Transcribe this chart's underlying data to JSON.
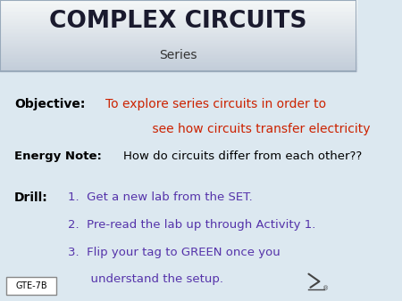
{
  "bg_color": "#dce8f0",
  "header_title": "COMPLEX CIRCUITS",
  "header_subtitle": "Series",
  "objective_label": "Objective:",
  "objective_text_line1": "To explore series circuits in order to",
  "objective_text_line2": "            see how circuits transfer electricity",
  "energy_label": "Energy Note:",
  "energy_text": "How do circuits differ from each other??",
  "drill_label": "Drill:",
  "drill_item1": "1.  Get a new lab from the SET.",
  "drill_item2": "2.  Pre-read the lab up through Activity 1.",
  "drill_item3": "3.  Flip your tag to GREEN once you",
  "drill_item3b": "      understand the setup.",
  "label_color": "#000000",
  "objective_text_color": "#cc2200",
  "energy_text_color": "#000000",
  "drill_text_color": "#5533aa",
  "gte_label": "GTE-7B",
  "header_border_color": "#99aabb",
  "header_title_color": "#1a1a2e"
}
